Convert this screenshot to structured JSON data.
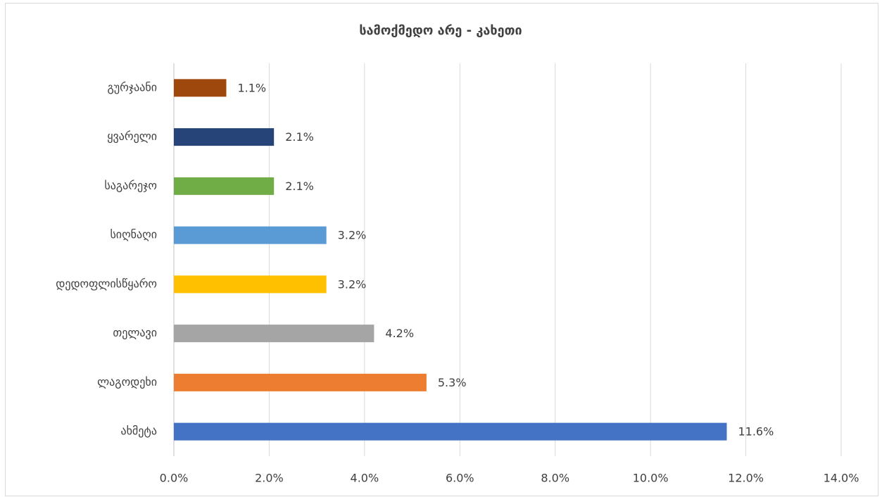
{
  "chart_data": {
    "type": "bar",
    "orientation": "horizontal",
    "title": "სამოქმედო არე - კახეთი",
    "categories": [
      "ახმეტა",
      "ლაგოდეხი",
      "თელავი",
      "დედოფლისწყარო",
      "სიღნაღი",
      "საგარეჯო",
      "ყვარელი",
      "გურჯაანი"
    ],
    "values": [
      11.6,
      5.3,
      4.2,
      3.2,
      3.2,
      2.1,
      2.1,
      1.1
    ],
    "value_labels": [
      "11.6%",
      "5.3%",
      "4.2%",
      "3.2%",
      "3.2%",
      "2.1%",
      "2.1%",
      "1.1%"
    ],
    "colors": [
      "#4472c4",
      "#ed7d31",
      "#a5a5a5",
      "#ffc000",
      "#5b9bd5",
      "#70ad47",
      "#264478",
      "#9e480e"
    ],
    "xlim": [
      0,
      14
    ],
    "xticks": [
      {
        "value": 0,
        "label": "0.0%"
      },
      {
        "value": 2,
        "label": "2.0%"
      },
      {
        "value": 4,
        "label": "4.0%"
      },
      {
        "value": 6,
        "label": "6.0%"
      },
      {
        "value": 8,
        "label": "8.0%"
      },
      {
        "value": 10,
        "label": "10.0%"
      },
      {
        "value": 12,
        "label": "12.0%"
      },
      {
        "value": 14,
        "label": "14.0%"
      }
    ],
    "grid": true
  }
}
